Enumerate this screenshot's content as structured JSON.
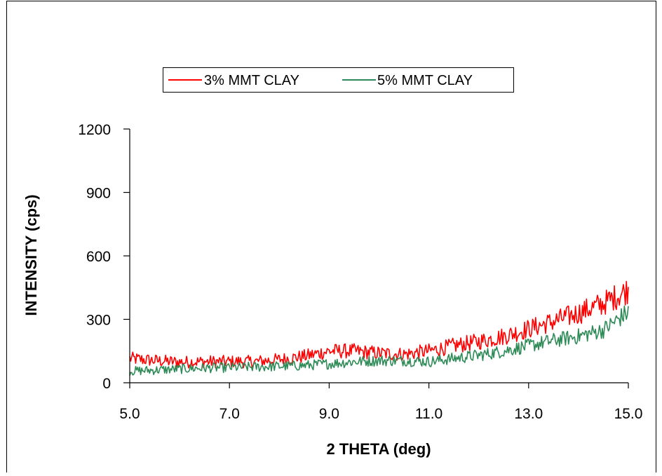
{
  "chart_data": {
    "type": "line",
    "title": "",
    "xlabel": "2 THETA (deg)",
    "ylabel": "INTENSITY (cps)",
    "xlim": [
      5.0,
      15.0
    ],
    "ylim": [
      0,
      1200
    ],
    "x_ticks": [
      "5.0",
      "7.0",
      "9.0",
      "11.0",
      "13.0",
      "15.0"
    ],
    "y_ticks": [
      "0",
      "300",
      "600",
      "900",
      "1200"
    ],
    "grid": false,
    "legend_position": "top",
    "series": [
      {
        "name": "3% MMT CLAY",
        "color": "#ff0000",
        "x": [
          5.0,
          5.5,
          6.0,
          6.5,
          7.0,
          7.5,
          8.0,
          8.5,
          9.0,
          9.5,
          10.0,
          10.5,
          11.0,
          11.5,
          12.0,
          12.5,
          13.0,
          13.5,
          14.0,
          14.5,
          15.0
        ],
        "y": [
          115,
          105,
          98,
          100,
          100,
          100,
          110,
          125,
          150,
          150,
          140,
          135,
          150,
          175,
          195,
          220,
          255,
          290,
          330,
          375,
          440
        ]
      },
      {
        "name": "5% MMT CLAY",
        "color": "#2e8b57",
        "x": [
          5.0,
          5.5,
          6.0,
          6.5,
          7.0,
          7.5,
          8.0,
          8.5,
          9.0,
          9.5,
          10.0,
          10.5,
          11.0,
          11.5,
          12.0,
          12.5,
          13.0,
          13.5,
          14.0,
          14.5,
          15.0
        ],
        "y": [
          55,
          60,
          65,
          70,
          72,
          75,
          78,
          82,
          90,
          100,
          105,
          105,
          100,
          115,
          130,
          150,
          175,
          200,
          220,
          250,
          335
        ]
      }
    ]
  }
}
